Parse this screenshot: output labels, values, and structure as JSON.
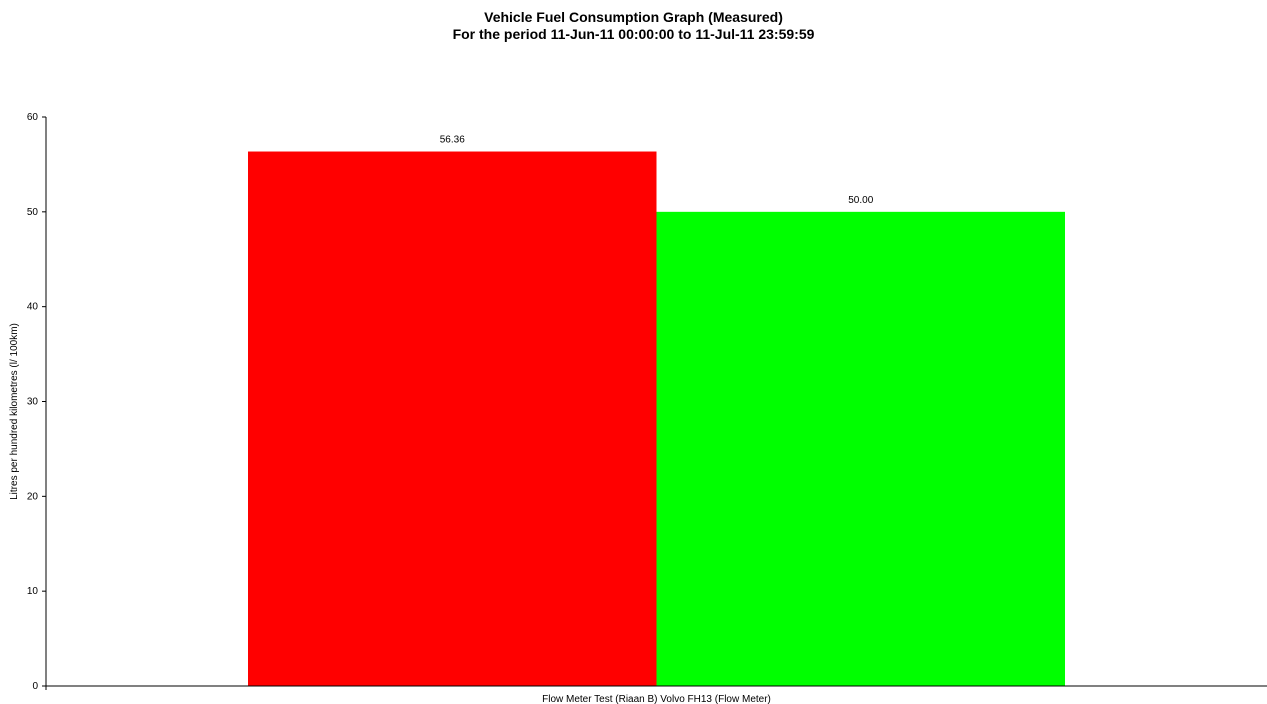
{
  "chart_data": {
    "type": "bar",
    "title": "Vehicle Fuel Consumption Graph (Measured)",
    "subtitle": "For the period 11-Jun-11 00:00:00 to 11-Jul-11 23:59:59",
    "categories": [
      "Flow Meter Test (Riaan B) Volvo FH13 (Flow Meter)"
    ],
    "series": [
      {
        "values": [
          56.36
        ],
        "color": "#ff0000",
        "data_label": "56.36"
      },
      {
        "values": [
          50.0
        ],
        "color": "#00ff00",
        "data_label": "50.00"
      }
    ],
    "xlabel": "",
    "ylabel": "Litres per hundred kilometres (l/ 100km)",
    "ylim": [
      0,
      60
    ],
    "yticks": [
      0,
      10,
      20,
      30,
      40,
      50,
      60
    ],
    "ytick_labels": [
      "0",
      "10",
      "20",
      "30",
      "40",
      "50",
      "60"
    ],
    "grid": false,
    "legend": "none"
  }
}
